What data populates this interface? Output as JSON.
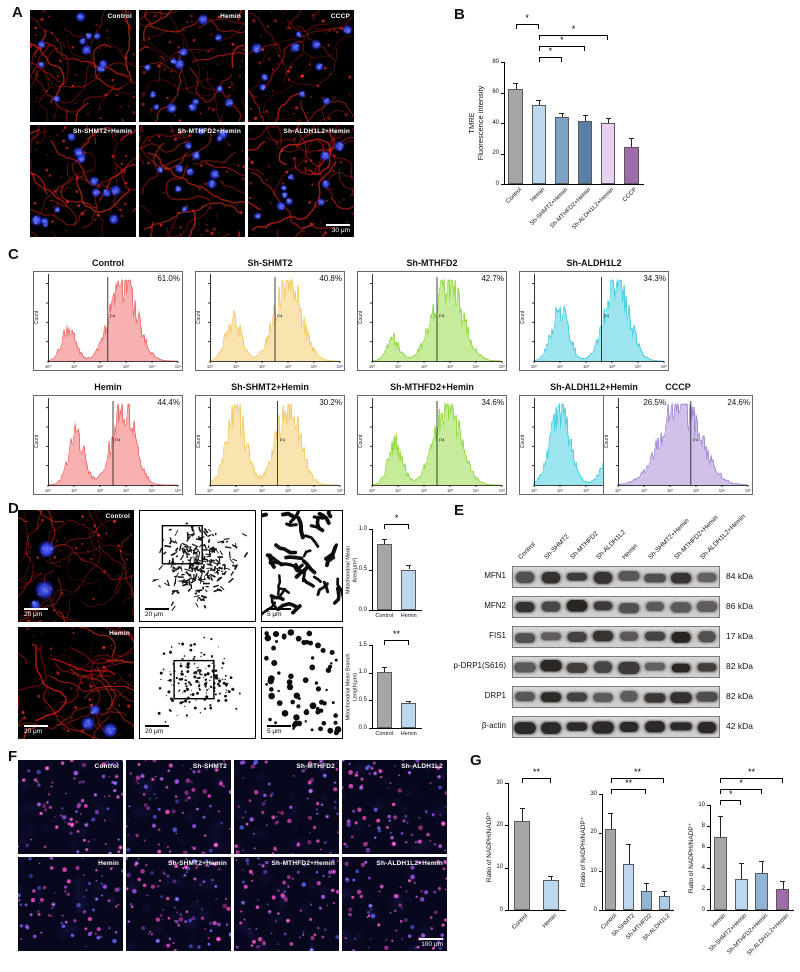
{
  "panels": {
    "A": {
      "label": "A",
      "scale_bar": "30 μm",
      "images": [
        {
          "label": "Control"
        },
        {
          "label": "Hemin"
        },
        {
          "label": "CCCP"
        },
        {
          "label": "Sh-SHMT2+Hemin"
        },
        {
          "label": "Sh-MTHFD2+Hemin"
        },
        {
          "label": "Sh-ALDH1L2+Hemin"
        }
      ]
    },
    "B": {
      "label": "B"
    },
    "C": {
      "label": "C",
      "ylabel": "Count",
      "gate": "P4",
      "xticks": [
        "10⁰",
        "10¹",
        "10²",
        "10³",
        "10⁴",
        "10⁵"
      ],
      "top": [
        {
          "title": "Control",
          "percent": "61.0%",
          "color": "#ef5350",
          "gate_x": 0.46,
          "peaks": [
            {
              "c": 0.16,
              "w": 0.055,
              "h": 0.38
            },
            {
              "c": 0.58,
              "w": 0.1,
              "h": 1
            }
          ]
        },
        {
          "title": "Sh-SHMT2",
          "percent": "40.8%",
          "color": "#f2c14e",
          "gate_x": 0.5,
          "peaks": [
            {
              "c": 0.18,
              "w": 0.06,
              "h": 0.5
            },
            {
              "c": 0.6,
              "w": 0.1,
              "h": 1
            }
          ]
        },
        {
          "title": "Sh-MTHFD2",
          "percent": "42.7%",
          "color": "#7ed321",
          "gate_x": 0.5,
          "peaks": [
            {
              "c": 0.16,
              "w": 0.05,
              "h": 0.28
            },
            {
              "c": 0.58,
              "w": 0.11,
              "h": 1
            }
          ]
        },
        {
          "title": "Sh-ALDH1L2",
          "percent": "34.3%",
          "color": "#26c6da",
          "gate_x": 0.52,
          "peaks": [
            {
              "c": 0.2,
              "w": 0.065,
              "h": 0.62
            },
            {
              "c": 0.64,
              "w": 0.09,
              "h": 1
            }
          ]
        }
      ],
      "bottom": [
        {
          "title": "Hemin",
          "percent": "44.4%",
          "color": "#ef5350",
          "gate_x": 0.5,
          "peaks": [
            {
              "c": 0.22,
              "w": 0.06,
              "h": 0.6
            },
            {
              "c": 0.58,
              "w": 0.085,
              "h": 1
            }
          ]
        },
        {
          "title": "Sh-SHMT2+Hemin",
          "percent": "30.2%",
          "color": "#f2c14e",
          "gate_x": 0.52,
          "peaks": [
            {
              "c": 0.2,
              "w": 0.075,
              "h": 0.88
            },
            {
              "c": 0.6,
              "w": 0.09,
              "h": 1
            }
          ]
        },
        {
          "title": "Sh-MTHFD2+Hemin",
          "percent": "34.6%",
          "color": "#7ed321",
          "gate_x": 0.5,
          "peaks": [
            {
              "c": 0.18,
              "w": 0.055,
              "h": 0.5
            },
            {
              "c": 0.58,
              "w": 0.1,
              "h": 1
            }
          ]
        },
        {
          "title": "Sh-ALDH1L2+Hemin",
          "percent": "26.5%",
          "color": "#26c6da",
          "gate_x": 0.54,
          "peaks": [
            {
              "c": 0.2,
              "w": 0.075,
              "h": 0.92
            },
            {
              "c": 0.66,
              "w": 0.085,
              "h": 1
            }
          ]
        },
        {
          "title": "CCCP",
          "percent": "24.6%",
          "color": "#9575cd",
          "gate_x": 0.56,
          "peaks": [
            {
              "c": 0.48,
              "w": 0.15,
              "h": 1
            }
          ]
        }
      ]
    },
    "D": {
      "label": "D",
      "rows": [
        {
          "label": "Control",
          "scale_fluor": "20 μm",
          "scale_skel": "20 μm",
          "scale_zoom": "5 μm"
        },
        {
          "label": "Hemin",
          "scale_fluor": "20 μm",
          "scale_skel": "20 μm",
          "scale_zoom": "5 μm"
        }
      ]
    },
    "E": {
      "label": "E",
      "lanes": [
        "Control",
        "Sh-SHMT2",
        "Sh-MTHFD2",
        "Sh-ALDH1L2",
        "Hemin",
        "Sh-SHMT2+Hemin",
        "Sh-MTHFD2+Hemin",
        "Sh-ALDH1L2+Hemin"
      ],
      "rows": [
        {
          "protein": "MFN1",
          "kda": "84 kDa"
        },
        {
          "protein": "MFN2",
          "kda": "86 kDa"
        },
        {
          "protein": "FIS1",
          "kda": "17 kDa"
        },
        {
          "protein": "p-DRP1(S616)",
          "kda": "82 kDa"
        },
        {
          "protein": "DRP1",
          "kda": "82 kDa"
        },
        {
          "protein": "β-actin",
          "kda": "42 kDa"
        }
      ]
    },
    "F": {
      "label": "F",
      "scale_bar": "100 μm",
      "images": [
        {
          "label": "Control"
        },
        {
          "label": "Sh-SHMT2"
        },
        {
          "label": "Sh-MTHFD2"
        },
        {
          "label": "Sh-ALDH1L2"
        },
        {
          "label": "Hemin"
        },
        {
          "label": "Sh-SHMT2+Hemin"
        },
        {
          "label": "Sh-MTHFD2+Hemin"
        },
        {
          "label": "Sh-ALDH1L2+Hemin"
        }
      ]
    },
    "G": {
      "label": "G"
    }
  },
  "chart_data": [
    {
      "id": "B",
      "type": "bar",
      "ylabel": "TMRE\nFluorescence intensity",
      "categories": [
        "Control",
        "Hemin",
        "Sh-SHMT2+Hemin",
        "Sh-MTHFD2+Hemin",
        "Sh-ALDH1L2+Hemin",
        "CCCP"
      ],
      "values": [
        62,
        52,
        44,
        41,
        40,
        24
      ],
      "errors": [
        4,
        3,
        2.5,
        4,
        3,
        6
      ],
      "bar_colors": [
        "#a6a6a6",
        "#bdd7ee",
        "#7ba2c4",
        "#5c7fa8",
        "#e8d1ec",
        "#9e6bab"
      ],
      "ylim": [
        0,
        80
      ],
      "yticks": [
        "0",
        "20",
        "40",
        "60",
        "80"
      ],
      "significance": [
        {
          "from": 0,
          "to": 1,
          "label": "*",
          "level": 3
        },
        {
          "from": 1,
          "to": 4,
          "label": "*",
          "level": 2
        },
        {
          "from": 1,
          "to": 3,
          "label": "*",
          "level": 1
        },
        {
          "from": 1,
          "to": 2,
          "label": "*",
          "level": 0
        }
      ]
    },
    {
      "id": "D1",
      "type": "bar",
      "ylabel": "Mitochondrial Mean\nArea(μm²)",
      "categories": [
        "Control",
        "Hemin"
      ],
      "values": [
        0.82,
        0.5
      ],
      "errors": [
        0.06,
        0.05
      ],
      "bar_colors": [
        "#a6a6a6",
        "#bdd7ee"
      ],
      "ylim": [
        0,
        1.0
      ],
      "yticks": [
        "0.0",
        "0.5",
        "1.0"
      ],
      "significance": [
        {
          "from": 0,
          "to": 1,
          "label": "*",
          "level": 0
        }
      ]
    },
    {
      "id": "D2",
      "type": "bar",
      "ylabel": "Mitochondrial Mean Branch\nLength(μm)",
      "categories": [
        "Control",
        "Hemin"
      ],
      "values": [
        1.02,
        0.45
      ],
      "errors": [
        0.08,
        0.04
      ],
      "bar_colors": [
        "#a6a6a6",
        "#bdd7ee"
      ],
      "ylim": [
        0,
        1.5
      ],
      "yticks": [
        "0.0",
        "0.5",
        "1.0",
        "1.5"
      ],
      "significance": [
        {
          "from": 0,
          "to": 1,
          "label": "**",
          "level": 0
        }
      ]
    },
    {
      "id": "G1",
      "type": "bar",
      "ylabel": "Ratio of NADPH/NADP⁺",
      "categories": [
        "Control",
        "Hemin"
      ],
      "values": [
        21,
        7
      ],
      "errors": [
        3,
        1
      ],
      "bar_colors": [
        "#a6a6a6",
        "#bdd7ee"
      ],
      "ylim": [
        0,
        30
      ],
      "yticks": [
        "0",
        "10",
        "20",
        "30"
      ],
      "significance": [
        {
          "from": 0,
          "to": 1,
          "label": "**",
          "level": 0
        }
      ]
    },
    {
      "id": "G2",
      "type": "bar",
      "ylabel": "Ratio of NADPH/NADP⁺",
      "categories": [
        "Control",
        "Sh-SHMT2",
        "Sh-MTHFD2",
        "Sh-ALDH1L2"
      ],
      "values": [
        21,
        12,
        5,
        3.5
      ],
      "errors": [
        4,
        5,
        2,
        1.5
      ],
      "bar_colors": [
        "#a6a6a6",
        "#bdd7ee",
        "#8fb4d6",
        "#aecbe8"
      ],
      "ylim": [
        0,
        30
      ],
      "yticks": [
        "0",
        "10",
        "20",
        "30"
      ],
      "significance": [
        {
          "from": 0,
          "to": 2,
          "label": "**",
          "level": 0
        },
        {
          "from": 0,
          "to": 3,
          "label": "**",
          "level": 1
        }
      ]
    },
    {
      "id": "G3",
      "type": "bar",
      "ylabel": "Ratio of NADPH/NADP⁺",
      "categories": [
        "Hemin",
        "Sh-SHMT2+Hemin",
        "Sh-MTHFD2+Hemin",
        "Sh-ALDH1L2+Hemin"
      ],
      "values": [
        7,
        3,
        3.5,
        2
      ],
      "errors": [
        2,
        1.5,
        1.2,
        0.8
      ],
      "bar_colors": [
        "#a6a6a6",
        "#bdd7ee",
        "#8fb4d6",
        "#9e6bab"
      ],
      "ylim": [
        0,
        10
      ],
      "yticks": [
        "0",
        "2",
        "4",
        "6",
        "8",
        "10"
      ],
      "significance": [
        {
          "from": 0,
          "to": 1,
          "label": "*",
          "level": 0
        },
        {
          "from": 0,
          "to": 2,
          "label": "*",
          "level": 1
        },
        {
          "from": 0,
          "to": 3,
          "label": "**",
          "level": 2
        }
      ]
    },
    {
      "id": "C",
      "type": "histogram",
      "subtype": "flow-cytometry-TMRE",
      "ylabel": "Count",
      "gate_label": "P4",
      "samples": [
        {
          "name": "Control",
          "gated_percent": 61.0
        },
        {
          "name": "Sh-SHMT2",
          "gated_percent": 40.8
        },
        {
          "name": "Sh-MTHFD2",
          "gated_percent": 42.7
        },
        {
          "name": "Sh-ALDH1L2",
          "gated_percent": 34.3
        },
        {
          "name": "Hemin",
          "gated_percent": 44.4
        },
        {
          "name": "Sh-SHMT2+Hemin",
          "gated_percent": 30.2
        },
        {
          "name": "Sh-MTHFD2+Hemin",
          "gated_percent": 34.6
        },
        {
          "name": "Sh-ALDH1L2+Hemin",
          "gated_percent": 26.5
        },
        {
          "name": "CCCP",
          "gated_percent": 24.6
        }
      ]
    }
  ]
}
